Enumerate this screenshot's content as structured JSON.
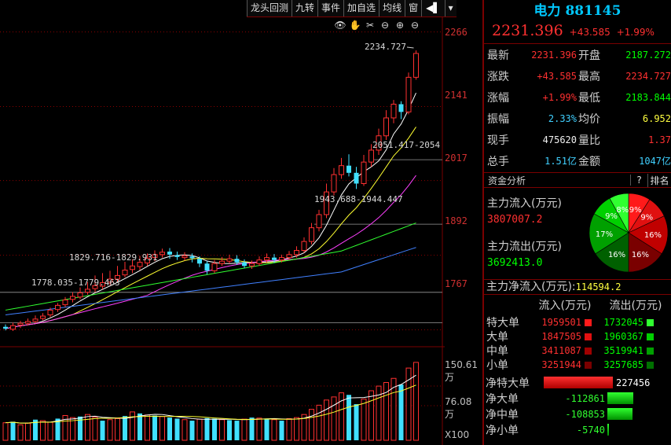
{
  "toolbar": {
    "buttons": [
      "龙头回测",
      "九转",
      "事件",
      "加自选",
      "均线",
      "窗"
    ],
    "arrow": "◀▌",
    "dropdown": "▾"
  },
  "controls": {
    "eye": "👁",
    "hand": "✋",
    "scissors": "✂",
    "minus_circle": "⊖",
    "plus": "⊕",
    "minus": "⊖"
  },
  "axis": {
    "price_ticks": [
      "2266",
      "2141",
      "2017",
      "1892",
      "1767"
    ],
    "volume_ticks": [
      "150.61万",
      "76.08万"
    ],
    "volume_unit": "X100"
  },
  "annotations": {
    "high": "2234.727",
    "resistance_1": "2051.417-2054",
    "resistance_2": "1943.688-1944.447",
    "support_1": "1829.716-1829.931",
    "support_2": "1778.035-1779.463"
  },
  "chart_data": {
    "type": "candlestick",
    "candles": [
      [
        1772,
        1769,
        1776,
        1766
      ],
      [
        1768,
        1774,
        1779,
        1765
      ],
      [
        1775,
        1778,
        1782,
        1770
      ],
      [
        1778,
        1781,
        1786,
        1774
      ],
      [
        1781,
        1785,
        1791,
        1778
      ],
      [
        1786,
        1790,
        1795,
        1783
      ],
      [
        1792,
        1800,
        1804,
        1788
      ],
      [
        1801,
        1808,
        1812,
        1797
      ],
      [
        1809,
        1817,
        1822,
        1805
      ],
      [
        1818,
        1823,
        1830,
        1813
      ],
      [
        1822,
        1829,
        1838,
        1818
      ],
      [
        1830,
        1835,
        1847,
        1826
      ],
      [
        1836,
        1841,
        1858,
        1830
      ],
      [
        1840,
        1846,
        1862,
        1835
      ],
      [
        1847,
        1852,
        1866,
        1842
      ],
      [
        1852,
        1858,
        1874,
        1847
      ],
      [
        1859,
        1867,
        1881,
        1855
      ],
      [
        1868,
        1874,
        1885,
        1862
      ],
      [
        1873,
        1880,
        1891,
        1867
      ],
      [
        1879,
        1887,
        1895,
        1874
      ],
      [
        1888,
        1893,
        1900,
        1882
      ],
      [
        1893,
        1897,
        1903,
        1888
      ],
      [
        1898,
        1893,
        1904,
        1886
      ],
      [
        1892,
        1889,
        1898,
        1884
      ],
      [
        1888,
        1891,
        1897,
        1883
      ],
      [
        1890,
        1887,
        1895,
        1880
      ],
      [
        1886,
        1878,
        1890,
        1872
      ],
      [
        1878,
        1866,
        1882,
        1860
      ],
      [
        1866,
        1878,
        1884,
        1862
      ],
      [
        1878,
        1882,
        1889,
        1874
      ],
      [
        1882,
        1886,
        1893,
        1878
      ],
      [
        1886,
        1880,
        1892,
        1876
      ],
      [
        1880,
        1874,
        1885,
        1870
      ],
      [
        1874,
        1878,
        1883,
        1869
      ],
      [
        1878,
        1884,
        1890,
        1874
      ],
      [
        1884,
        1888,
        1895,
        1880
      ],
      [
        1888,
        1884,
        1894,
        1879
      ],
      [
        1884,
        1888,
        1893,
        1880
      ],
      [
        1888,
        1893,
        1899,
        1884
      ],
      [
        1893,
        1900,
        1907,
        1888
      ],
      [
        1900,
        1915,
        1922,
        1896
      ],
      [
        1915,
        1938,
        1946,
        1910
      ],
      [
        1938,
        1960,
        1968,
        1932
      ],
      [
        1960,
        1998,
        2012,
        1954
      ],
      [
        1998,
        2027,
        2038,
        1992
      ],
      [
        2027,
        2042,
        2055,
        2020
      ],
      [
        2042,
        2030,
        2061,
        2024
      ],
      [
        2030,
        2012,
        2040,
        2003
      ],
      [
        2012,
        2048,
        2060,
        2008
      ],
      [
        2048,
        2068,
        2078,
        2040
      ],
      [
        2068,
        2092,
        2104,
        2060
      ],
      [
        2092,
        2122,
        2135,
        2085
      ],
      [
        2122,
        2145,
        2152,
        2113
      ],
      [
        2145,
        2132,
        2150,
        2120
      ],
      [
        2132,
        2190,
        2198,
        2128
      ],
      [
        2190,
        2230,
        2235,
        2186
      ]
    ],
    "volume": [
      34,
      36,
      30,
      33,
      40,
      38,
      35,
      42,
      48,
      44,
      46,
      50,
      45,
      38,
      40,
      42,
      47,
      55,
      52,
      49,
      48,
      46,
      44,
      42,
      40,
      38,
      41,
      43,
      42,
      40,
      39,
      38,
      41,
      44,
      43,
      42,
      40,
      38,
      42,
      44,
      50,
      60,
      68,
      78,
      84,
      92,
      88,
      70,
      80,
      96,
      105,
      112,
      120,
      108,
      140,
      151
    ],
    "volume_up": [
      true,
      false,
      true,
      true,
      false,
      true,
      true,
      false,
      true,
      true,
      false,
      true,
      true,
      false,
      true,
      true,
      false,
      true,
      false,
      true,
      false,
      true,
      false,
      false,
      true,
      false,
      true,
      false,
      false,
      true,
      false,
      false,
      true,
      false,
      true,
      false,
      true,
      false,
      true,
      true,
      true,
      true,
      true,
      true,
      true,
      true,
      false,
      false,
      true,
      true,
      true,
      true,
      true,
      false,
      true,
      true
    ],
    "ylim": [
      1740,
      2280
    ],
    "vol_max": 160
  },
  "panel": {
    "name": "电力",
    "code": "881145",
    "price": "2231.396",
    "change": "+43.585",
    "pct": "+1.99%",
    "quote_rows": [
      {
        "l1": "最新",
        "v1": "2231.396",
        "c1": "red",
        "l2": "开盘",
        "v2": "2187.272",
        "c2": "green"
      },
      {
        "l1": "涨跌",
        "v1": "+43.585",
        "c1": "red",
        "l2": "最高",
        "v2": "2234.727",
        "c2": "red"
      },
      {
        "l1": "涨幅",
        "v1": "+1.99%",
        "c1": "red",
        "l2": "最低",
        "v2": "2183.844",
        "c2": "green"
      },
      {
        "l1": "振幅",
        "v1": "2.33%",
        "c1": "cyan",
        "l2": "均价",
        "v2": "6.952",
        "c2": "yellow"
      },
      {
        "l1": "现手",
        "v1": "475620",
        "c1": "white",
        "l2": "量比",
        "v2": "1.37",
        "c2": "red"
      },
      {
        "l1": "总手",
        "v1": "1.51亿",
        "c1": "cyan",
        "l2": "金额",
        "v2": "1047亿",
        "c2": "cyan"
      }
    ],
    "fund": {
      "title": "资金分析",
      "help": "?",
      "rank": "排名",
      "inflow_label": "主力流入(万元)",
      "inflow_value": "3807007.2",
      "outflow_label": "主力流出(万元)",
      "outflow_value": "3692413.0",
      "net_label": "主力净流入(万元):",
      "net_value": "114594.2",
      "pie": [
        {
          "label": "9%",
          "value": 9,
          "color": "#ff1a1a"
        },
        {
          "label": "9%",
          "value": 9,
          "color": "#e01010"
        },
        {
          "label": "16%",
          "value": 16,
          "color": "#c00000"
        },
        {
          "label": "16%",
          "value": 16,
          "color": "#7a0000"
        },
        {
          "label": "16%",
          "value": 16,
          "color": "#006000"
        },
        {
          "label": "17%",
          "value": 17,
          "color": "#00a000"
        },
        {
          "label": "9%",
          "value": 9,
          "color": "#00d000"
        },
        {
          "label": "8%",
          "value": 8,
          "color": "#30ff30"
        }
      ]
    },
    "flow_table": {
      "header_in": "流入(万元)",
      "header_out": "流出(万元)",
      "rows": [
        {
          "label": "特大单",
          "in": "1959501",
          "out": "1732045",
          "in_color": "#ff1a1a",
          "out_color": "#30ff30"
        },
        {
          "label": "大单",
          "in": "1847505",
          "out": "1960367",
          "in_color": "#e01010",
          "out_color": "#00d000"
        },
        {
          "label": "中单",
          "in": "3411087",
          "out": "3519941",
          "in_color": "#a00000",
          "out_color": "#00a000"
        },
        {
          "label": "小单",
          "in": "3251944",
          "out": "3257685",
          "in_color": "#7a0000",
          "out_color": "#007000"
        }
      ]
    },
    "net_rows": [
      {
        "label": "净特大单",
        "value": "227456",
        "num": 227456
      },
      {
        "label": "净大单",
        "value": "-112861",
        "num": -112861
      },
      {
        "label": "净中单",
        "value": "-108853",
        "num": -108853
      },
      {
        "label": "净小单",
        "value": "-5740",
        "num": -5740
      }
    ]
  }
}
